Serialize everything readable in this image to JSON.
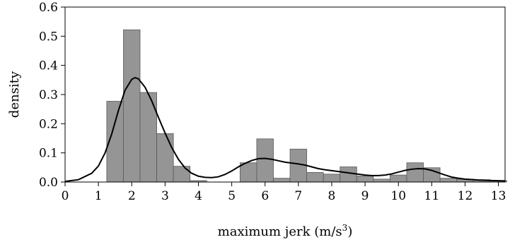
{
  "chart_data": {
    "type": "bar",
    "subtype": "histogram-with-density-curve",
    "title": "",
    "xlabel": "maximum jerk (m/s",
    "xlabel_superscript": "3",
    "xlabel_suffix": ")",
    "ylabel": "density",
    "xlim": [
      0,
      13.2
    ],
    "ylim": [
      0,
      0.6
    ],
    "xticks": [
      "0",
      "1",
      "2",
      "3",
      "4",
      "5",
      "6",
      "7",
      "8",
      "9",
      "10",
      "11",
      "12",
      "13"
    ],
    "yticks": [
      "0.0",
      "0.1",
      "0.2",
      "0.3",
      "0.4",
      "0.5",
      "0.6"
    ],
    "grid": false,
    "legend": "none",
    "bar_color": "#959595",
    "curve_color": "#000000",
    "bins": [
      {
        "x0": 1.25,
        "x1": 1.75,
        "value": 0.277
      },
      {
        "x0": 1.75,
        "x1": 2.25,
        "value": 0.522
      },
      {
        "x0": 2.25,
        "x1": 2.75,
        "value": 0.307
      },
      {
        "x0": 2.75,
        "x1": 3.25,
        "value": 0.166
      },
      {
        "x0": 3.25,
        "x1": 3.75,
        "value": 0.054
      },
      {
        "x0": 3.75,
        "x1": 4.25,
        "value": 0.005
      },
      {
        "x0": 4.25,
        "x1": 4.75,
        "value": 0.0
      },
      {
        "x0": 4.75,
        "x1": 5.25,
        "value": 0.0
      },
      {
        "x0": 5.25,
        "x1": 5.75,
        "value": 0.066
      },
      {
        "x0": 5.75,
        "x1": 6.25,
        "value": 0.148
      },
      {
        "x0": 6.25,
        "x1": 6.75,
        "value": 0.013
      },
      {
        "x0": 6.75,
        "x1": 7.25,
        "value": 0.113
      },
      {
        "x0": 7.25,
        "x1": 7.75,
        "value": 0.033
      },
      {
        "x0": 7.75,
        "x1": 8.25,
        "value": 0.027
      },
      {
        "x0": 8.25,
        "x1": 8.75,
        "value": 0.052
      },
      {
        "x0": 8.75,
        "x1": 9.25,
        "value": 0.021
      },
      {
        "x0": 9.25,
        "x1": 9.75,
        "value": 0.01
      },
      {
        "x0": 9.75,
        "x1": 10.25,
        "value": 0.024
      },
      {
        "x0": 10.25,
        "x1": 10.75,
        "value": 0.066
      },
      {
        "x0": 10.75,
        "x1": 11.25,
        "value": 0.049
      },
      {
        "x0": 11.25,
        "x1": 11.75,
        "value": 0.013
      },
      {
        "x0": 11.75,
        "x1": 12.25,
        "value": 0.01
      },
      {
        "x0": 12.25,
        "x1": 12.75,
        "value": 0.008
      },
      {
        "x0": 12.75,
        "x1": 13.25,
        "value": 0.005
      }
    ],
    "density_curve": {
      "x": [
        0.0,
        0.4,
        0.8,
        1.0,
        1.2,
        1.4,
        1.6,
        1.8,
        2.0,
        2.1,
        2.2,
        2.4,
        2.6,
        2.8,
        3.0,
        3.2,
        3.4,
        3.6,
        3.8,
        4.0,
        4.2,
        4.4,
        4.6,
        4.8,
        5.0,
        5.2,
        5.4,
        5.6,
        5.8,
        6.0,
        6.2,
        6.4,
        6.6,
        6.8,
        7.0,
        7.2,
        7.4,
        7.6,
        7.8,
        8.0,
        8.2,
        8.4,
        8.6,
        8.8,
        9.0,
        9.2,
        9.4,
        9.6,
        9.8,
        10.0,
        10.2,
        10.4,
        10.6,
        10.8,
        11.0,
        11.2,
        11.4,
        11.6,
        11.8,
        12.0,
        12.4,
        12.8,
        13.2
      ],
      "y": [
        0.002,
        0.008,
        0.03,
        0.055,
        0.1,
        0.165,
        0.245,
        0.315,
        0.352,
        0.358,
        0.354,
        0.325,
        0.278,
        0.222,
        0.168,
        0.118,
        0.078,
        0.048,
        0.03,
        0.02,
        0.016,
        0.015,
        0.018,
        0.026,
        0.038,
        0.052,
        0.064,
        0.074,
        0.08,
        0.081,
        0.078,
        0.073,
        0.068,
        0.065,
        0.062,
        0.058,
        0.052,
        0.046,
        0.042,
        0.039,
        0.036,
        0.033,
        0.03,
        0.027,
        0.024,
        0.022,
        0.022,
        0.024,
        0.028,
        0.034,
        0.04,
        0.044,
        0.046,
        0.045,
        0.04,
        0.032,
        0.024,
        0.017,
        0.013,
        0.01,
        0.007,
        0.005,
        0.004
      ]
    }
  }
}
